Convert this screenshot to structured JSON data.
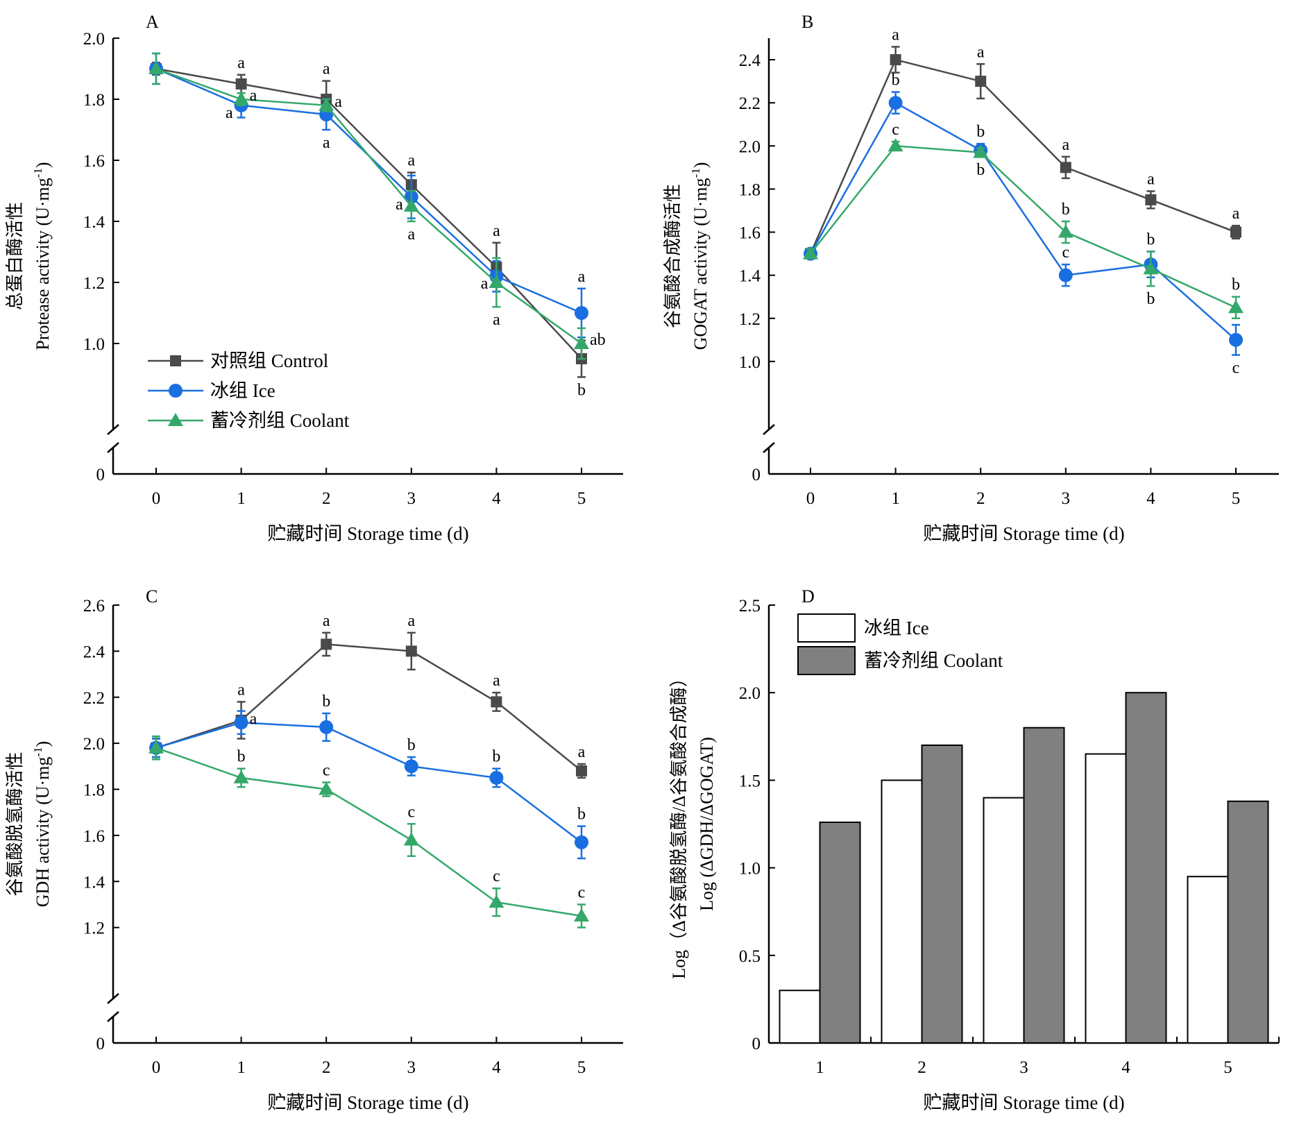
{
  "figure": {
    "colors": {
      "control": "#4a4a4a",
      "ice": "#1a6fe0",
      "coolant": "#34a86a",
      "bar_ice": "#ffffff",
      "bar_coolant": "#808080",
      "axis": "#000000"
    }
  },
  "chart_data": [
    {
      "type": "line",
      "panel_label": "A",
      "ylabel_cn": "总蛋白酶活性",
      "ylabel_en": "Protease activity (U·mg",
      "ylabel_sup": "-1",
      "ylabel_close": ")",
      "xlabel": "贮藏时间 Storage time (d)",
      "x": [
        0,
        1,
        2,
        3,
        4,
        5
      ],
      "xtick_labels": [
        "0",
        "1",
        "2",
        "3",
        "4",
        "5"
      ],
      "ylim": [
        0.8,
        2.0
      ],
      "yticks": [
        1.0,
        1.2,
        1.4,
        1.6,
        1.8,
        2.0
      ],
      "ytick_labels": [
        "1.0",
        "1.2",
        "1.4",
        "1.6",
        "1.8",
        "2.0"
      ],
      "axis_break": true,
      "zero_label": "0",
      "legend_position": "bottom-left",
      "series": [
        {
          "name": "对照组 Control",
          "key": "control",
          "marker": "square",
          "values": [
            1.9,
            1.85,
            1.8,
            1.52,
            1.25,
            0.95
          ],
          "errors": [
            0.02,
            0.03,
            0.06,
            0.04,
            0.08,
            0.06
          ],
          "letters": [
            "",
            "a",
            "a",
            "a",
            "a",
            "b"
          ],
          "letter_pos": [
            "above",
            "above",
            "above",
            "above",
            "above",
            "below"
          ]
        },
        {
          "name": "冰组 Ice",
          "key": "ice",
          "marker": "circle",
          "values": [
            1.9,
            1.78,
            1.75,
            1.48,
            1.22,
            1.1
          ],
          "errors": [
            0.05,
            0.04,
            0.05,
            0.07,
            0.05,
            0.08
          ],
          "letters": [
            "",
            "a",
            "a",
            "a",
            "a",
            "a"
          ],
          "letter_pos": [
            "above",
            "left",
            "below",
            "left",
            "left",
            "above"
          ]
        },
        {
          "name": "蓄冷剂组 Coolant",
          "key": "coolant",
          "marker": "triangle",
          "values": [
            1.9,
            1.8,
            1.78,
            1.45,
            1.2,
            1.0
          ],
          "errors": [
            0.05,
            0.02,
            0.02,
            0.05,
            0.08,
            0.05
          ],
          "letters": [
            "",
            "a",
            "a",
            "a",
            "a",
            "ab"
          ],
          "letter_pos": [
            "above",
            "right",
            "right",
            "below",
            "below",
            "right"
          ]
        }
      ]
    },
    {
      "type": "line",
      "panel_label": "B",
      "ylabel_cn": "谷氨酸合成酶活性",
      "ylabel_en": "GOGAT activity (U·mg",
      "ylabel_sup": "-1",
      "ylabel_close": ")",
      "xlabel": "贮藏时间 Storage time (d)",
      "x": [
        0,
        1,
        2,
        3,
        4,
        5
      ],
      "xtick_labels": [
        "0",
        "1",
        "2",
        "3",
        "4",
        "5"
      ],
      "ylim": [
        0.8,
        2.5
      ],
      "yticks": [
        1.0,
        1.2,
        1.4,
        1.6,
        1.8,
        2.0,
        2.2,
        2.4
      ],
      "ytick_labels": [
        "1.0",
        "1.2",
        "1.4",
        "1.6",
        "1.8",
        "2.0",
        "2.2",
        "2.4"
      ],
      "axis_break": true,
      "zero_label": "0",
      "series": [
        {
          "name": "对照组 Control",
          "key": "control",
          "marker": "square",
          "values": [
            1.5,
            2.4,
            2.3,
            1.9,
            1.75,
            1.6
          ],
          "errors": [
            0.02,
            0.06,
            0.08,
            0.05,
            0.04,
            0.03
          ],
          "letters": [
            "",
            "a",
            "a",
            "a",
            "a",
            "a"
          ],
          "letter_pos": [
            "above",
            "above",
            "above",
            "above",
            "above",
            "above"
          ]
        },
        {
          "name": "冰组 Ice",
          "key": "ice",
          "marker": "circle",
          "values": [
            1.5,
            2.2,
            1.98,
            1.4,
            1.45,
            1.1
          ],
          "errors": [
            0.02,
            0.05,
            0.03,
            0.05,
            0.06,
            0.07
          ],
          "letters": [
            "",
            "b",
            "b",
            "c",
            "b",
            "c"
          ],
          "letter_pos": [
            "above",
            "above",
            "above",
            "above",
            "above",
            "below"
          ]
        },
        {
          "name": "蓄冷剂组 Coolant",
          "key": "coolant",
          "marker": "triangle",
          "values": [
            1.5,
            2.0,
            1.97,
            1.6,
            1.43,
            1.25
          ],
          "errors": [
            0.02,
            0.02,
            0.02,
            0.05,
            0.08,
            0.05
          ],
          "letters": [
            "",
            "c",
            "b",
            "b",
            "b",
            "b"
          ],
          "letter_pos": [
            "above",
            "above",
            "below",
            "above",
            "below",
            "above"
          ]
        }
      ]
    },
    {
      "type": "line",
      "panel_label": "C",
      "ylabel_cn": "谷氨酸脱氢酶活性",
      "ylabel_en": "GDH activity (U·mg",
      "ylabel_sup": "-1",
      "ylabel_close": ")",
      "xlabel": "贮藏时间 Storage time (d)",
      "x": [
        0,
        1,
        2,
        3,
        4,
        5
      ],
      "xtick_labels": [
        "0",
        "1",
        "2",
        "3",
        "4",
        "5"
      ],
      "ylim": [
        1.0,
        2.6
      ],
      "yticks": [
        1.2,
        1.4,
        1.6,
        1.8,
        2.0,
        2.2,
        2.4,
        2.6
      ],
      "ytick_labels": [
        "1.2",
        "1.4",
        "1.6",
        "1.8",
        "2.0",
        "2.2",
        "2.4",
        "2.6"
      ],
      "axis_break": true,
      "zero_label": "0",
      "series": [
        {
          "name": "对照组 Control",
          "key": "control",
          "marker": "square",
          "values": [
            1.98,
            2.1,
            2.43,
            2.4,
            2.18,
            1.88
          ],
          "errors": [
            0.04,
            0.08,
            0.05,
            0.08,
            0.04,
            0.03
          ],
          "letters": [
            "",
            "a",
            "a",
            "a",
            "a",
            "a"
          ],
          "letter_pos": [
            "above",
            "above",
            "above",
            "above",
            "above",
            "above"
          ]
        },
        {
          "name": "冰组 Ice",
          "key": "ice",
          "marker": "circle",
          "values": [
            1.98,
            2.09,
            2.07,
            1.9,
            1.85,
            1.57
          ],
          "errors": [
            0.04,
            0.05,
            0.06,
            0.04,
            0.04,
            0.07
          ],
          "letters": [
            "",
            "a",
            "b",
            "b",
            "b",
            "b"
          ],
          "letter_pos": [
            "above",
            "right",
            "above",
            "above",
            "above",
            "above"
          ]
        },
        {
          "name": "蓄冷剂组 Coolant",
          "key": "coolant",
          "marker": "triangle",
          "values": [
            1.98,
            1.85,
            1.8,
            1.58,
            1.31,
            1.25
          ],
          "errors": [
            0.05,
            0.04,
            0.03,
            0.07,
            0.06,
            0.05
          ],
          "letters": [
            "",
            "b",
            "c",
            "c",
            "c",
            "c"
          ],
          "letter_pos": [
            "above",
            "above",
            "above",
            "above",
            "above",
            "above"
          ]
        }
      ]
    },
    {
      "type": "bar",
      "panel_label": "D",
      "ylabel_cn": "Log（Δ谷氨酸脱氢酶/Δ谷氨酸合成酶）",
      "ylabel_en": "Log (ΔGDH/ΔGOGAT)",
      "xlabel": "贮藏时间 Storage time (d)",
      "categories": [
        "1",
        "2",
        "3",
        "4",
        "5"
      ],
      "ylim": [
        0,
        2.5
      ],
      "yticks": [
        0,
        0.5,
        1.0,
        1.5,
        2.0,
        2.5
      ],
      "ytick_labels": [
        "0",
        "0.5",
        "1.0",
        "1.5",
        "2.0",
        "2.5"
      ],
      "legend_position": "top-left",
      "series": [
        {
          "name": "冰组 Ice",
          "key": "bar_ice",
          "values": [
            0.3,
            1.5,
            1.4,
            1.65,
            0.95
          ]
        },
        {
          "name": "蓄冷剂组 Coolant",
          "key": "bar_coolant",
          "values": [
            1.26,
            1.7,
            1.8,
            2.0,
            1.38
          ]
        }
      ]
    }
  ]
}
